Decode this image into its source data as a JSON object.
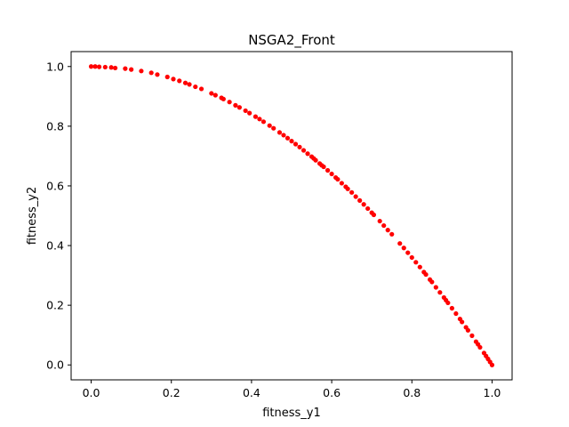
{
  "chart_data": {
    "type": "scatter",
    "title": "NSGA2_Front",
    "xlabel": "fitness_y1",
    "ylabel": "fitness_y2",
    "xlim": [
      -0.05,
      1.05
    ],
    "ylim": [
      -0.05,
      1.05
    ],
    "xticks": [
      0.0,
      0.2,
      0.4,
      0.6,
      0.8,
      1.0
    ],
    "yticks": [
      0.0,
      0.2,
      0.4,
      0.6,
      0.8,
      1.0
    ],
    "xtick_labels": [
      "0.0",
      "0.2",
      "0.4",
      "0.6",
      "0.8",
      "1.0"
    ],
    "ytick_labels": [
      "0.0",
      "0.2",
      "0.4",
      "0.6",
      "0.8",
      "1.0"
    ],
    "grid": false,
    "marker_color": "#ff0000",
    "series": [
      {
        "x": [
          0.0,
          0.01,
          0.02,
          0.035,
          0.05,
          0.06,
          0.085,
          0.1,
          0.125,
          0.15,
          0.165,
          0.19,
          0.205,
          0.22,
          0.235,
          0.245,
          0.26,
          0.275,
          0.3,
          0.31,
          0.325,
          0.33,
          0.345,
          0.36,
          0.37,
          0.385,
          0.395,
          0.41,
          0.42,
          0.43,
          0.445,
          0.455,
          0.47,
          0.48,
          0.49,
          0.5,
          0.51,
          0.52,
          0.53,
          0.54,
          0.55,
          0.555,
          0.56,
          0.57,
          0.575,
          0.58,
          0.59,
          0.6,
          0.61,
          0.615,
          0.625,
          0.635,
          0.64,
          0.65,
          0.66,
          0.67,
          0.68,
          0.69,
          0.7,
          0.705,
          0.72,
          0.73,
          0.74,
          0.75,
          0.77,
          0.78,
          0.79,
          0.8,
          0.81,
          0.82,
          0.83,
          0.835,
          0.845,
          0.85,
          0.86,
          0.87,
          0.88,
          0.885,
          0.89,
          0.9,
          0.91,
          0.92,
          0.925,
          0.935,
          0.94,
          0.95,
          0.96,
          0.965,
          0.97,
          0.98,
          0.985,
          0.99,
          0.995,
          1.0
        ],
        "y": [
          1.0,
          1.0,
          0.999,
          0.998,
          0.997,
          0.995,
          0.993,
          0.99,
          0.985,
          0.979,
          0.973,
          0.965,
          0.958,
          0.952,
          0.945,
          0.94,
          0.932,
          0.925,
          0.91,
          0.904,
          0.895,
          0.891,
          0.881,
          0.87,
          0.863,
          0.852,
          0.844,
          0.832,
          0.824,
          0.815,
          0.802,
          0.793,
          0.779,
          0.77,
          0.76,
          0.75,
          0.74,
          0.73,
          0.719,
          0.708,
          0.698,
          0.692,
          0.686,
          0.675,
          0.669,
          0.664,
          0.652,
          0.64,
          0.628,
          0.622,
          0.609,
          0.597,
          0.59,
          0.578,
          0.564,
          0.551,
          0.538,
          0.524,
          0.51,
          0.503,
          0.482,
          0.467,
          0.452,
          0.438,
          0.407,
          0.392,
          0.376,
          0.36,
          0.344,
          0.328,
          0.311,
          0.303,
          0.286,
          0.278,
          0.26,
          0.243,
          0.226,
          0.217,
          0.208,
          0.19,
          0.172,
          0.154,
          0.144,
          0.126,
          0.116,
          0.098,
          0.078,
          0.069,
          0.059,
          0.04,
          0.03,
          0.02,
          0.01,
          0.0
        ]
      }
    ]
  }
}
